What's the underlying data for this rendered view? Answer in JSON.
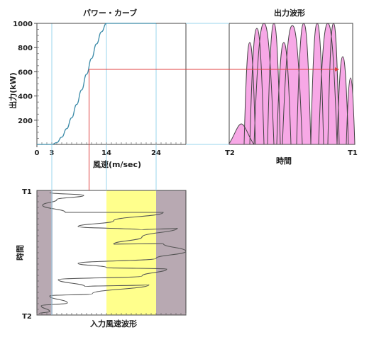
{
  "power_curve": {
    "title": "パワー・カーブ",
    "ylabel": "出力(kW)",
    "xlabel": "風速(m/sec)",
    "x_ticks": [
      "0",
      "3",
      "14",
      "24"
    ],
    "y_ticks": [
      "200",
      "400",
      "600",
      "800",
      "1000"
    ]
  },
  "output_waveform": {
    "title": "出力波形",
    "xlabel": "時間",
    "x_left_label": "T2",
    "x_right_label": "T1"
  },
  "input_wind": {
    "ylabel": "時間",
    "xlabel": "入力風速波形",
    "y_top_label": "T1",
    "y_bottom_label": "T2"
  },
  "colors": {
    "curve": "#3a8aa8",
    "fill_output": "#f7a8e6",
    "band_fast": "#b8a9b2",
    "band_rated": "#ffff8c",
    "trace": "#555555",
    "link": "#e04040",
    "guide": "#9ad4ee"
  },
  "chart_data": [
    {
      "type": "line",
      "title": "パワー・カーブ",
      "xlabel": "風速(m/sec)",
      "ylabel": "出力(kW)",
      "xlim": [
        0,
        30
      ],
      "ylim": [
        0,
        1000
      ],
      "x": [
        0,
        3,
        4,
        5,
        6,
        7,
        8,
        9,
        10,
        11,
        12,
        13,
        14,
        24
      ],
      "y": [
        0,
        0,
        15,
        60,
        130,
        220,
        330,
        450,
        580,
        710,
        830,
        930,
        1000,
        1000
      ]
    }
  ]
}
